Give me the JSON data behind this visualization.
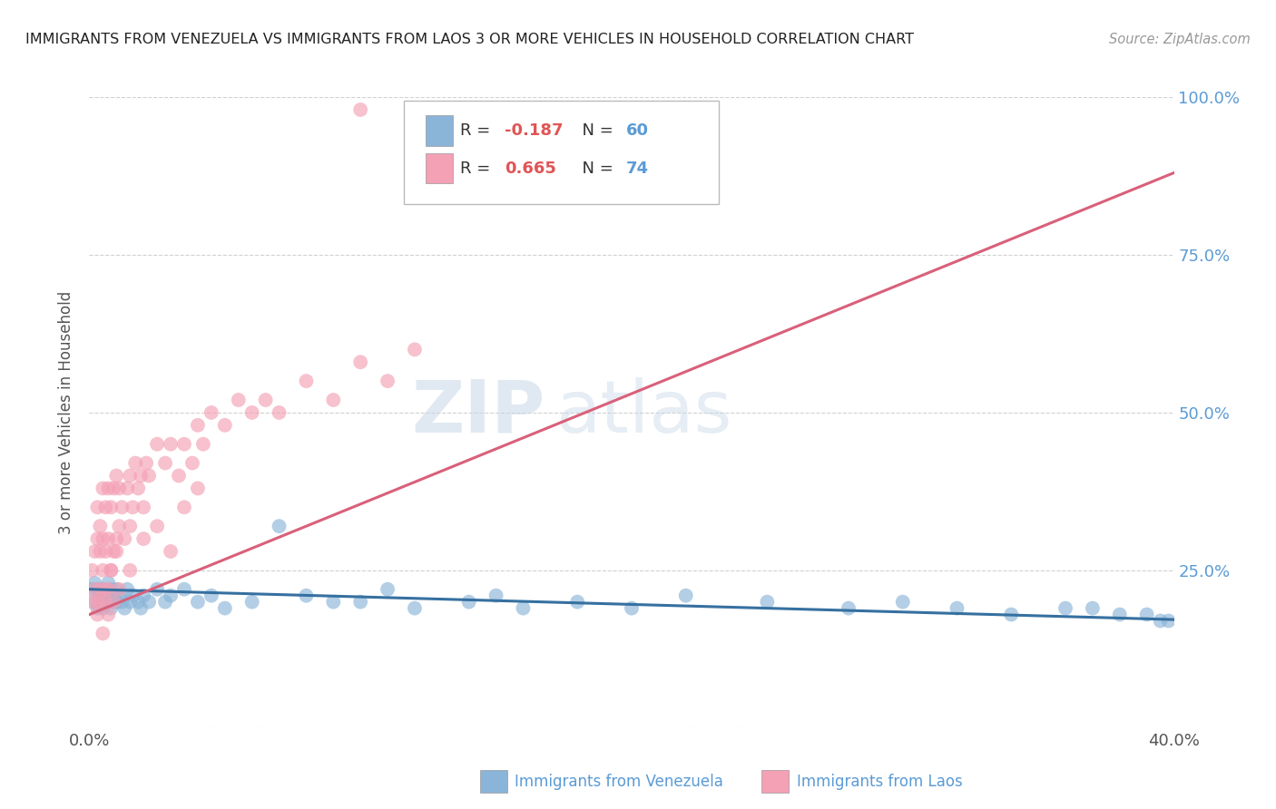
{
  "title": "IMMIGRANTS FROM VENEZUELA VS IMMIGRANTS FROM LAOS 3 OR MORE VEHICLES IN HOUSEHOLD CORRELATION CHART",
  "source": "Source: ZipAtlas.com",
  "ylabel_label": "3 or more Vehicles in Household",
  "legend_blue_label": "Immigrants from Venezuela",
  "legend_pink_label": "Immigrants from Laos",
  "blue_R": -0.187,
  "blue_N": 60,
  "pink_R": 0.665,
  "pink_N": 74,
  "blue_color": "#8ab4d8",
  "pink_color": "#f4a0b5",
  "blue_line_color": "#3670a0",
  "pink_line_color": "#d9607a",
  "watermark_zip": "ZIP",
  "watermark_atlas": "atlas",
  "xlim": [
    0.0,
    0.4
  ],
  "ylim": [
    0.0,
    1.0
  ],
  "blue_scatter_x": [
    0.001,
    0.002,
    0.002,
    0.003,
    0.003,
    0.004,
    0.004,
    0.005,
    0.005,
    0.006,
    0.006,
    0.007,
    0.007,
    0.008,
    0.008,
    0.009,
    0.009,
    0.01,
    0.01,
    0.011,
    0.012,
    0.013,
    0.014,
    0.015,
    0.016,
    0.018,
    0.019,
    0.02,
    0.022,
    0.025,
    0.028,
    0.03,
    0.035,
    0.04,
    0.045,
    0.05,
    0.06,
    0.07,
    0.08,
    0.09,
    0.1,
    0.11,
    0.12,
    0.14,
    0.15,
    0.16,
    0.18,
    0.2,
    0.22,
    0.25,
    0.28,
    0.3,
    0.32,
    0.34,
    0.36,
    0.37,
    0.38,
    0.39,
    0.395,
    0.398
  ],
  "blue_scatter_y": [
    0.22,
    0.2,
    0.23,
    0.19,
    0.22,
    0.21,
    0.2,
    0.22,
    0.19,
    0.21,
    0.2,
    0.23,
    0.2,
    0.22,
    0.19,
    0.2,
    0.21,
    0.22,
    0.2,
    0.21,
    0.2,
    0.19,
    0.22,
    0.2,
    0.21,
    0.2,
    0.19,
    0.21,
    0.2,
    0.22,
    0.2,
    0.21,
    0.22,
    0.2,
    0.21,
    0.19,
    0.2,
    0.32,
    0.21,
    0.2,
    0.2,
    0.22,
    0.19,
    0.2,
    0.21,
    0.19,
    0.2,
    0.19,
    0.21,
    0.2,
    0.19,
    0.2,
    0.19,
    0.18,
    0.19,
    0.19,
    0.18,
    0.18,
    0.17,
    0.17
  ],
  "pink_scatter_x": [
    0.001,
    0.001,
    0.002,
    0.002,
    0.003,
    0.003,
    0.003,
    0.004,
    0.004,
    0.004,
    0.005,
    0.005,
    0.005,
    0.006,
    0.006,
    0.006,
    0.007,
    0.007,
    0.007,
    0.008,
    0.008,
    0.009,
    0.009,
    0.01,
    0.01,
    0.011,
    0.011,
    0.012,
    0.013,
    0.014,
    0.015,
    0.015,
    0.016,
    0.017,
    0.018,
    0.019,
    0.02,
    0.021,
    0.022,
    0.025,
    0.028,
    0.03,
    0.033,
    0.035,
    0.038,
    0.04,
    0.042,
    0.045,
    0.05,
    0.055,
    0.06,
    0.065,
    0.07,
    0.08,
    0.09,
    0.1,
    0.11,
    0.12,
    0.005,
    0.003,
    0.004,
    0.006,
    0.007,
    0.008,
    0.009,
    0.01,
    0.011,
    0.015,
    0.02,
    0.025,
    0.03,
    0.035,
    0.04,
    0.1
  ],
  "pink_scatter_y": [
    0.2,
    0.25,
    0.22,
    0.28,
    0.2,
    0.3,
    0.35,
    0.22,
    0.28,
    0.32,
    0.25,
    0.3,
    0.38,
    0.2,
    0.28,
    0.35,
    0.22,
    0.3,
    0.38,
    0.25,
    0.35,
    0.28,
    0.38,
    0.3,
    0.4,
    0.32,
    0.38,
    0.35,
    0.3,
    0.38,
    0.32,
    0.4,
    0.35,
    0.42,
    0.38,
    0.4,
    0.35,
    0.42,
    0.4,
    0.45,
    0.42,
    0.45,
    0.4,
    0.45,
    0.42,
    0.48,
    0.45,
    0.5,
    0.48,
    0.52,
    0.5,
    0.52,
    0.5,
    0.55,
    0.52,
    0.58,
    0.55,
    0.6,
    0.15,
    0.18,
    0.2,
    0.22,
    0.18,
    0.25,
    0.2,
    0.28,
    0.22,
    0.25,
    0.3,
    0.32,
    0.28,
    0.35,
    0.38,
    0.98
  ],
  "blue_trend": [
    0.22,
    0.172
  ],
  "pink_trend": [
    0.18,
    0.88
  ]
}
